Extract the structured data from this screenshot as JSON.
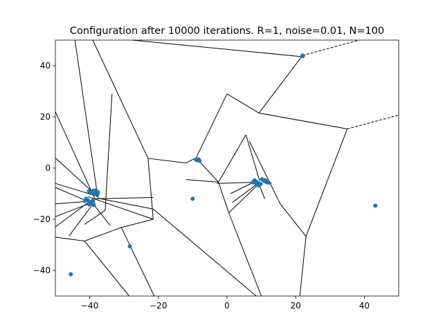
{
  "chart_data": {
    "type": "scatter",
    "title": "Configuration after 10000 iterations. R=1, noise=0.01, N=100",
    "xlabel": "",
    "ylabel": "",
    "xlim": [
      -50,
      50
    ],
    "ylim": [
      -50,
      50
    ],
    "x_ticks": [
      -40,
      -20,
      0,
      20,
      40
    ],
    "y_ticks": [
      -40,
      -20,
      0,
      20,
      40
    ],
    "grid": false,
    "point_color": "#1f77b4",
    "edge_color": "#000000",
    "points": [
      {
        "x": 22.0,
        "y": 44.0
      },
      {
        "x": 22.1,
        "y": 43.7
      },
      {
        "x": -9.0,
        "y": 3.2
      },
      {
        "x": -8.5,
        "y": 3.0
      },
      {
        "x": -8.3,
        "y": 3.4
      },
      {
        "x": -8.0,
        "y": 2.9
      },
      {
        "x": -10.0,
        "y": -12.0
      },
      {
        "x": -38.2,
        "y": -8.7
      },
      {
        "x": -38.5,
        "y": -9.5
      },
      {
        "x": -39.0,
        "y": -8.9
      },
      {
        "x": -39.5,
        "y": -9.3
      },
      {
        "x": -37.6,
        "y": -9.5
      },
      {
        "x": -37.8,
        "y": -10.5
      },
      {
        "x": -38.9,
        "y": -10.0
      },
      {
        "x": -40.2,
        "y": -9.1
      },
      {
        "x": -41.0,
        "y": -12.0
      },
      {
        "x": -40.5,
        "y": -12.6
      },
      {
        "x": -39.8,
        "y": -13.2
      },
      {
        "x": -39.4,
        "y": -13.9
      },
      {
        "x": -40.2,
        "y": -14.2
      },
      {
        "x": -39.0,
        "y": -13.0
      },
      {
        "x": -41.4,
        "y": -12.8
      },
      {
        "x": -38.8,
        "y": -14.4
      },
      {
        "x": 8.0,
        "y": -4.8
      },
      {
        "x": 8.5,
        "y": -5.3
      },
      {
        "x": 9.0,
        "y": -5.8
      },
      {
        "x": 9.2,
        "y": -6.8
      },
      {
        "x": 8.6,
        "y": -6.4
      },
      {
        "x": 9.8,
        "y": -6.2
      },
      {
        "x": 7.6,
        "y": -5.6
      },
      {
        "x": 10.6,
        "y": -4.6
      },
      {
        "x": 10.9,
        "y": -5.1
      },
      {
        "x": 11.2,
        "y": -4.8
      },
      {
        "x": 11.6,
        "y": -5.5
      },
      {
        "x": 12.1,
        "y": -5.7
      },
      {
        "x": 10.2,
        "y": -4.4
      },
      {
        "x": 43.2,
        "y": -14.7
      },
      {
        "x": -28.3,
        "y": -30.6
      },
      {
        "x": -45.5,
        "y": -41.5
      }
    ],
    "voronoi_edges": [
      {
        "from": [
          -44.3,
          50
        ],
        "to": [
          -37.6,
          -11.8
        ]
      },
      {
        "from": [
          -39.1,
          50
        ],
        "to": [
          -23.0,
          3.8
        ]
      },
      {
        "from": [
          -23.0,
          3.8
        ],
        "to": [
          -21.5,
          -20.0
        ]
      },
      {
        "from": [
          -23.0,
          3.8
        ],
        "to": [
          -12.0,
          2.0
        ]
      },
      {
        "from": [
          -12.0,
          2.0
        ],
        "to": [
          -9.0,
          4.0
        ]
      },
      {
        "from": [
          -27.6,
          50
        ],
        "to": [
          22.0,
          43.5
        ]
      },
      {
        "from": [
          -9.0,
          4.0
        ],
        "to": [
          0,
          29.0
        ]
      },
      {
        "from": [
          0,
          29.0
        ],
        "to": [
          9.3,
          21.5
        ]
      },
      {
        "from": [
          9.3,
          21.5
        ],
        "to": [
          22.0,
          44.0
        ]
      },
      {
        "from": [
          9.3,
          21.5
        ],
        "to": [
          35.0,
          15.3
        ]
      },
      {
        "from": [
          -9.0,
          4.0
        ],
        "to": [
          -2.5,
          -5.5
        ]
      },
      {
        "from": [
          -2.5,
          -5.5
        ],
        "to": [
          5.5,
          13.0
        ]
      },
      {
        "from": [
          -2.5,
          -5.5
        ],
        "to": [
          -12.0,
          -4.5
        ]
      },
      {
        "from": [
          -2.5,
          -5.5
        ],
        "to": [
          0.5,
          -17.5
        ]
      },
      {
        "from": [
          0.5,
          -17.5
        ],
        "to": [
          10.0,
          -50
        ]
      },
      {
        "from": [
          8.5,
          -50
        ],
        "to": [
          -21.5,
          -16.0
        ]
      },
      {
        "from": [
          -21.5,
          -20.0
        ],
        "to": [
          -40.5,
          -11.2
        ]
      },
      {
        "from": [
          -21.5,
          -20.0
        ],
        "to": [
          -30.8,
          -23.2
        ]
      },
      {
        "from": [
          -30.8,
          -23.2
        ],
        "to": [
          -41.5,
          -28.5
        ]
      },
      {
        "from": [
          -30.8,
          -23.2
        ],
        "to": [
          -21.2,
          -50
        ]
      },
      {
        "from": [
          -41.5,
          -28.5
        ],
        "to": [
          -28.5,
          -50
        ]
      },
      {
        "from": [
          -41.5,
          -28.5
        ],
        "to": [
          -50,
          -27.0
        ]
      },
      {
        "from": [
          -50,
          22.0
        ],
        "to": [
          -38.5,
          -12.0
        ]
      },
      {
        "from": [
          -50,
          4.0
        ],
        "to": [
          -37.8,
          -11.0
        ]
      },
      {
        "from": [
          -50,
          -6.0
        ],
        "to": [
          -37.8,
          -11.0
        ]
      },
      {
        "from": [
          -50,
          -7.6
        ],
        "to": [
          -40.5,
          -13.0
        ]
      },
      {
        "from": [
          -50,
          -14.0
        ],
        "to": [
          -40.5,
          -13.0
        ]
      },
      {
        "from": [
          -50,
          -19.0
        ],
        "to": [
          -38.5,
          -13.0
        ]
      },
      {
        "from": [
          -50,
          -23.0
        ],
        "to": [
          -39.0,
          -12.0
        ]
      },
      {
        "from": [
          -46.0,
          -26.5
        ],
        "to": [
          -38.5,
          -13.0
        ]
      },
      {
        "from": [
          -33.5,
          29.0
        ],
        "to": [
          -35.5,
          -16.5
        ]
      },
      {
        "from": [
          -35.5,
          -16.5
        ],
        "to": [
          -41.5,
          -22.0
        ]
      },
      {
        "from": [
          -38.5,
          -12.0
        ],
        "to": [
          -21.5,
          -11.5
        ]
      },
      {
        "from": [
          -37.6,
          -11.8
        ],
        "to": [
          -21.5,
          -16.0
        ]
      },
      {
        "from": [
          -39.0,
          -14.0
        ],
        "to": [
          -34.0,
          -22.5
        ]
      },
      {
        "from": [
          5.5,
          13.0
        ],
        "to": [
          9.5,
          -5.0
        ]
      },
      {
        "from": [
          6.5,
          10.5
        ],
        "to": [
          15.5,
          -14.0
        ]
      },
      {
        "from": [
          15.5,
          -14.0
        ],
        "to": [
          23.0,
          -26.7
        ]
      },
      {
        "from": [
          23.0,
          -26.7
        ],
        "to": [
          35.0,
          15.3
        ]
      },
      {
        "from": [
          23.0,
          -26.7
        ],
        "to": [
          21.2,
          -50
        ]
      },
      {
        "from": [
          0.5,
          -17.5
        ],
        "to": [
          9.0,
          -6.5
        ]
      },
      {
        "from": [
          1.5,
          -13.5
        ],
        "to": [
          9.0,
          -6.0
        ]
      },
      {
        "from": [
          1.0,
          -10.0
        ],
        "to": [
          8.5,
          -5.0
        ]
      },
      {
        "from": [
          -3.0,
          -6.0
        ],
        "to": [
          8.5,
          -5.5
        ]
      },
      {
        "from": [
          9.5,
          -7.0
        ],
        "to": [
          11.0,
          -12.0
        ]
      },
      {
        "from": [
          11.0,
          -5.0
        ],
        "to": [
          13.0,
          -6.0
        ]
      }
    ],
    "dashed_edges": [
      {
        "from": [
          22.0,
          44.0
        ],
        "to": [
          38.5,
          50
        ]
      },
      {
        "from": [
          35.0,
          15.3
        ],
        "to": [
          50,
          20.7
        ]
      }
    ]
  }
}
